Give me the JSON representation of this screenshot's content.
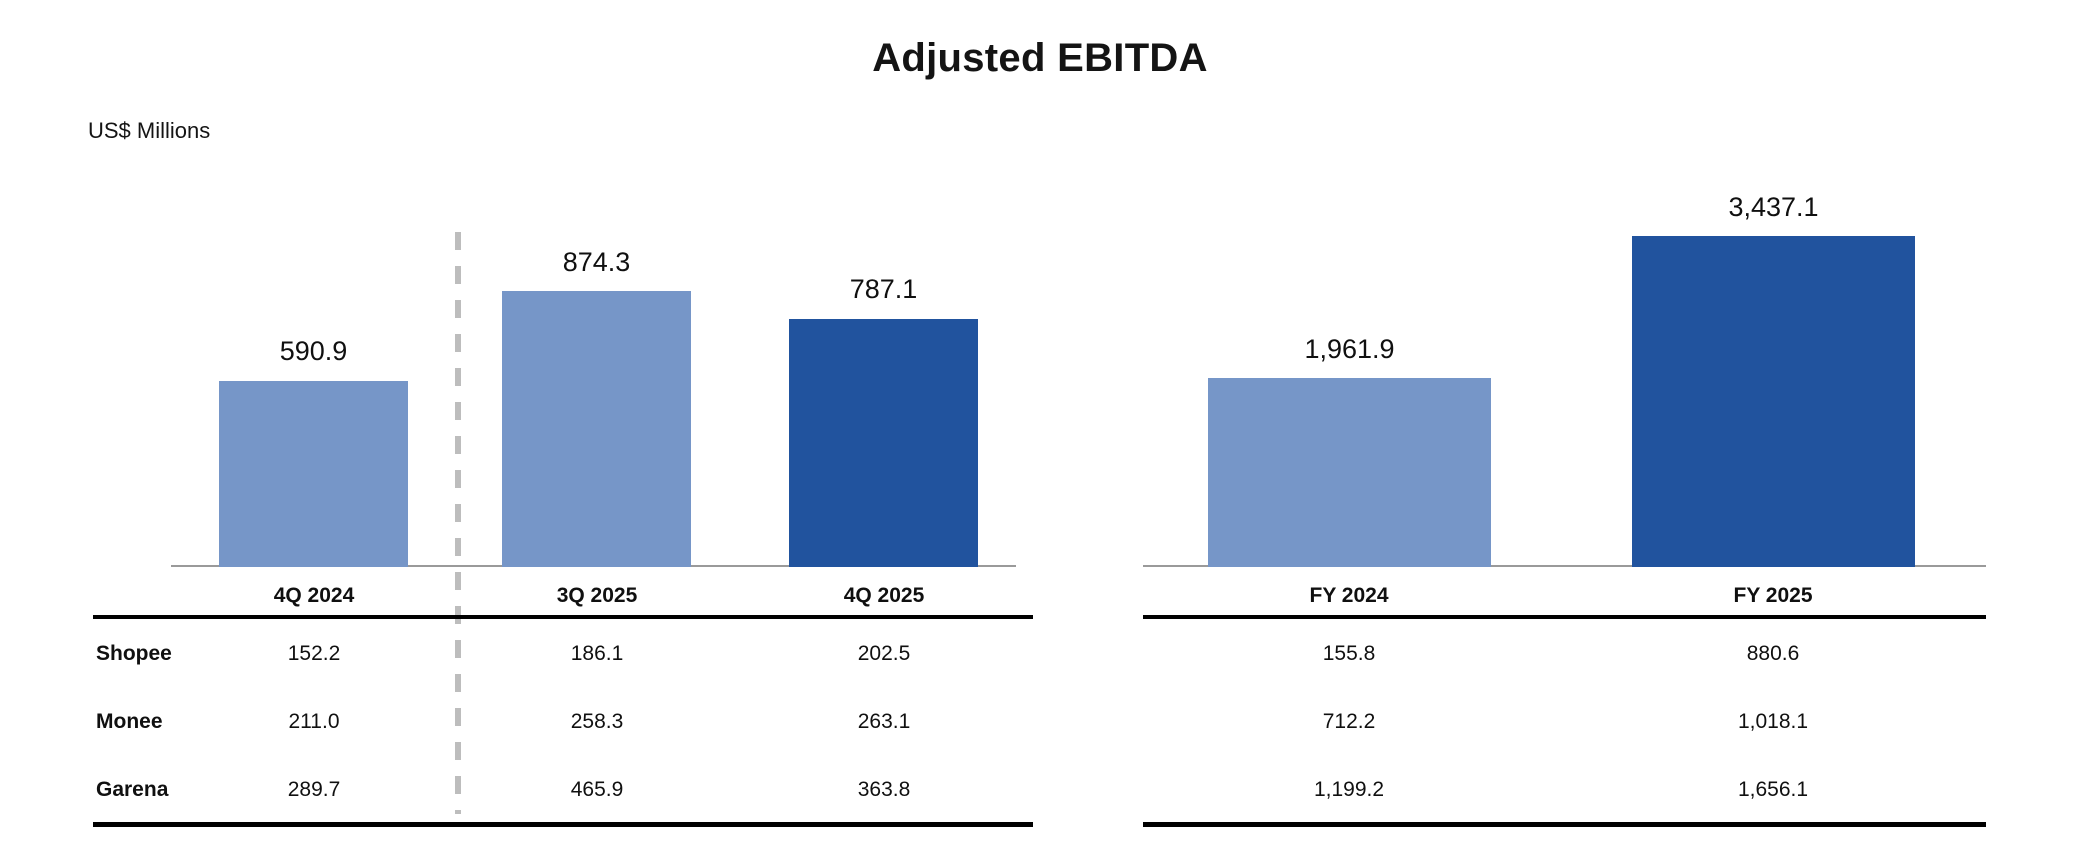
{
  "title": "Adjusted EBITDA",
  "units_label": "US$ Millions",
  "colors": {
    "light_blue": "#7696C8",
    "dark_blue": "#21539E",
    "axis_gray": "#9A9A9A",
    "separator_gray": "#BDBDBD"
  },
  "segments": [
    "Shopee",
    "Monee",
    "Garena"
  ],
  "chart_data": [
    {
      "type": "bar",
      "categories": [
        "4Q 2024",
        "3Q 2025",
        "4Q 2025"
      ],
      "values": [
        590.9,
        874.3,
        787.1
      ],
      "value_labels": [
        "590.9",
        "874.3",
        "787.1"
      ],
      "bar_colors": [
        "light_blue",
        "light_blue",
        "dark_blue"
      ],
      "table": {
        "row_labels": [
          "Shopee",
          "Monee",
          "Garena"
        ],
        "rows": [
          [
            "152.2",
            "186.1",
            "202.5"
          ],
          [
            "211.0",
            "258.3",
            "263.1"
          ],
          [
            "289.7",
            "465.9",
            "363.8"
          ]
        ]
      }
    },
    {
      "type": "bar",
      "categories": [
        "FY 2024",
        "FY 2025"
      ],
      "values": [
        1961.9,
        3437.1
      ],
      "value_labels": [
        "1,961.9",
        "3,437.1"
      ],
      "bar_colors": [
        "light_blue",
        "dark_blue"
      ],
      "table": {
        "row_labels": [
          "Shopee",
          "Monee",
          "Garena"
        ],
        "rows": [
          [
            "155.8",
            "880.6"
          ],
          [
            "712.2",
            "1,018.1"
          ],
          [
            "1,199.2",
            "1,656.1"
          ]
        ]
      }
    }
  ]
}
